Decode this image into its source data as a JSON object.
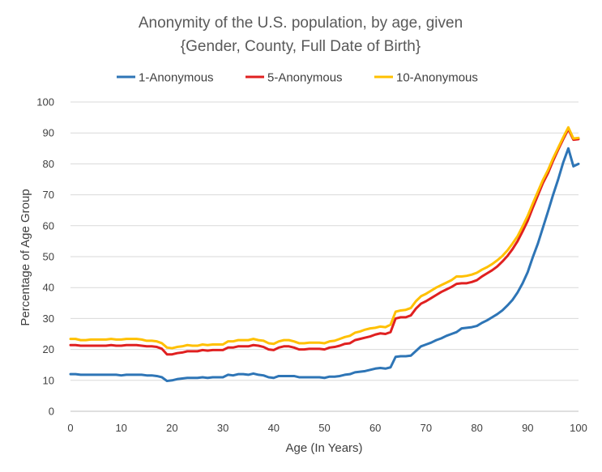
{
  "chart_data": {
    "type": "line",
    "title_line1": "Anonymity of the U.S. population, by age, given",
    "title_line2": "{Gender, County, Full Date of Birth}",
    "xlabel": "Age (In Years)",
    "ylabel": "Percentage of Age Group",
    "xlim": [
      0,
      100
    ],
    "ylim": [
      0,
      100
    ],
    "x_ticks": [
      0,
      10,
      20,
      30,
      40,
      50,
      60,
      70,
      80,
      90,
      100
    ],
    "y_ticks": [
      0,
      10,
      20,
      30,
      40,
      50,
      60,
      70,
      80,
      90,
      100
    ],
    "grid": "horizontal",
    "legend_position": "top",
    "x": [
      0,
      1,
      2,
      3,
      4,
      5,
      6,
      7,
      8,
      9,
      10,
      11,
      12,
      13,
      14,
      15,
      16,
      17,
      18,
      19,
      20,
      21,
      22,
      23,
      24,
      25,
      26,
      27,
      28,
      29,
      30,
      31,
      32,
      33,
      34,
      35,
      36,
      37,
      38,
      39,
      40,
      41,
      42,
      43,
      44,
      45,
      46,
      47,
      48,
      49,
      50,
      51,
      52,
      53,
      54,
      55,
      56,
      57,
      58,
      59,
      60,
      61,
      62,
      63,
      64,
      65,
      66,
      67,
      68,
      69,
      70,
      71,
      72,
      73,
      74,
      75,
      76,
      77,
      78,
      79,
      80,
      81,
      82,
      83,
      84,
      85,
      86,
      87,
      88,
      89,
      90,
      91,
      92,
      93,
      94,
      95,
      96,
      97,
      98,
      99,
      100
    ],
    "series": [
      {
        "name": "1-Anonymous",
        "color": "#2E75B6",
        "values": [
          12.0,
          12.0,
          11.8,
          11.8,
          11.8,
          11.8,
          11.8,
          11.8,
          11.8,
          11.8,
          11.6,
          11.8,
          11.8,
          11.8,
          11.8,
          11.6,
          11.6,
          11.4,
          11.0,
          9.8,
          10.0,
          10.4,
          10.6,
          10.8,
          10.8,
          10.8,
          11.0,
          10.8,
          11.0,
          11.0,
          11.0,
          11.8,
          11.6,
          12.0,
          12.0,
          11.8,
          12.2,
          11.8,
          11.6,
          11.0,
          10.8,
          11.4,
          11.4,
          11.4,
          11.4,
          11.0,
          11.0,
          11.0,
          11.0,
          11.0,
          10.8,
          11.2,
          11.2,
          11.4,
          11.8,
          12.0,
          12.6,
          12.8,
          13.0,
          13.4,
          13.8,
          14.0,
          13.8,
          14.2,
          17.6,
          17.8,
          17.8,
          18.0,
          19.5,
          21.0,
          21.6,
          22.2,
          23.0,
          23.6,
          24.4,
          25.0,
          25.6,
          26.8,
          27.0,
          27.2,
          27.6,
          28.6,
          29.4,
          30.4,
          31.4,
          32.6,
          34.2,
          36.0,
          38.4,
          41.4,
          45.0,
          49.8,
          54.2,
          59.4,
          64.6,
          70.0,
          75.0,
          80.5,
          85.0,
          79.2,
          80.0
        ]
      },
      {
        "name": "5-Anonymous",
        "color": "#E02020",
        "values": [
          21.4,
          21.4,
          21.2,
          21.2,
          21.2,
          21.2,
          21.2,
          21.2,
          21.4,
          21.2,
          21.2,
          21.4,
          21.4,
          21.4,
          21.2,
          21.0,
          21.0,
          20.8,
          20.2,
          18.4,
          18.4,
          18.8,
          19.0,
          19.4,
          19.4,
          19.4,
          19.8,
          19.6,
          19.8,
          19.8,
          19.8,
          20.6,
          20.6,
          21.0,
          21.0,
          21.0,
          21.4,
          21.2,
          20.8,
          20.0,
          19.8,
          20.6,
          21.0,
          21.0,
          20.6,
          20.0,
          20.0,
          20.2,
          20.2,
          20.2,
          20.0,
          20.6,
          20.8,
          21.2,
          21.8,
          22.0,
          23.0,
          23.4,
          23.8,
          24.2,
          24.8,
          25.2,
          25.0,
          25.6,
          30.0,
          30.4,
          30.4,
          31.0,
          33.2,
          34.8,
          35.6,
          36.6,
          37.6,
          38.6,
          39.4,
          40.2,
          41.2,
          41.4,
          41.4,
          41.8,
          42.4,
          43.6,
          44.6,
          45.6,
          46.8,
          48.4,
          50.2,
          52.4,
          55.0,
          58.2,
          61.6,
          65.8,
          69.8,
          73.8,
          77.0,
          81.0,
          84.6,
          88.0,
          91.2,
          87.8,
          88.0
        ]
      },
      {
        "name": "10-Anonymous",
        "color": "#FFC000",
        "values": [
          23.4,
          23.4,
          23.0,
          23.0,
          23.2,
          23.2,
          23.2,
          23.2,
          23.4,
          23.2,
          23.2,
          23.4,
          23.4,
          23.4,
          23.2,
          22.8,
          22.8,
          22.6,
          22.0,
          20.6,
          20.4,
          20.8,
          21.0,
          21.4,
          21.2,
          21.2,
          21.6,
          21.4,
          21.6,
          21.6,
          21.6,
          22.6,
          22.6,
          23.0,
          23.0,
          23.0,
          23.4,
          23.0,
          22.8,
          22.0,
          21.8,
          22.6,
          23.0,
          23.0,
          22.6,
          22.0,
          22.0,
          22.2,
          22.2,
          22.2,
          22.0,
          22.6,
          22.8,
          23.4,
          24.0,
          24.4,
          25.4,
          25.8,
          26.4,
          26.8,
          27.0,
          27.4,
          27.2,
          28.0,
          32.2,
          32.6,
          32.8,
          33.4,
          35.6,
          37.2,
          38.0,
          39.0,
          40.0,
          40.8,
          41.6,
          42.4,
          43.6,
          43.6,
          43.8,
          44.2,
          44.8,
          45.8,
          46.6,
          47.6,
          48.8,
          50.2,
          52.0,
          54.2,
          56.6,
          59.8,
          63.2,
          67.2,
          71.0,
          74.8,
          78.0,
          81.8,
          85.2,
          88.6,
          91.8,
          88.2,
          88.4
        ]
      }
    ]
  }
}
